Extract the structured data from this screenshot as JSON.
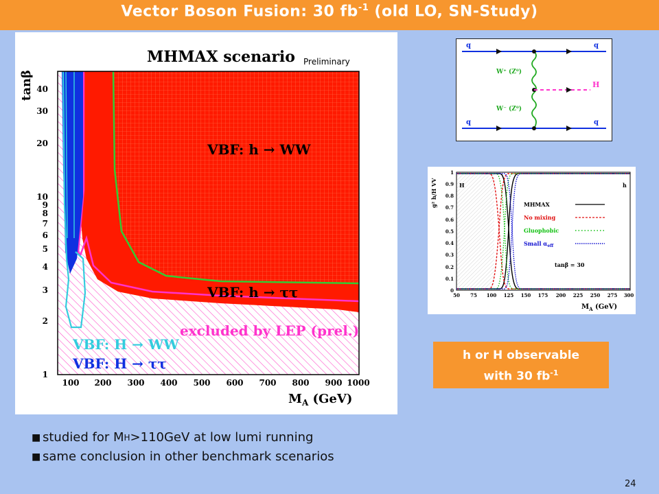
{
  "title": {
    "main": "Vector Boson Fusion: 30 fb",
    "sup": "-1",
    "rest": " (old LO, SN-Study)"
  },
  "main_plot": {
    "title": "MHMAX scenario",
    "preliminary": "Preliminary",
    "ylabel": "tanβ",
    "xlabel": "M",
    "xlabel_sub": "A",
    "xlabel_unit": " (GeV)",
    "yticks": [
      "40",
      "30",
      "20",
      "10",
      "9",
      "8",
      "7",
      "6",
      "5",
      "4",
      "3",
      "2",
      "1"
    ],
    "xticks": [
      "100",
      "200",
      "300",
      "400",
      "500",
      "600",
      "700",
      "800",
      "900",
      "1000"
    ],
    "label_hww": "VBF: h → WW",
    "label_htt": "VBF: h → ττ",
    "label_lep": "excluded by LEP (prel.)",
    "label_Hww": "VBF: H → WW",
    "label_Htt": "VBF: H → ττ"
  },
  "feynman": {
    "q1": "q",
    "q2": "q",
    "q3": "q",
    "q4": "q",
    "w_top": "W⁺ (Z⁰)",
    "w_bot": "W⁻ (Z⁰)",
    "higgs": "H"
  },
  "coupling_plot": {
    "ylabel": "g² h/H VV",
    "yticks": [
      "1",
      "0.9",
      "0.8",
      "0.7",
      "0.6",
      "0.5",
      "0.4",
      "0.3",
      "0.2",
      "0.1",
      "0"
    ],
    "xticks": [
      "50",
      "75",
      "100",
      "125",
      "150",
      "175",
      "200",
      "225",
      "250",
      "275",
      "300"
    ],
    "xlabel": "M",
    "xlabel_sub": "A",
    "xlabel_unit": " (GeV)",
    "label_H": "H",
    "label_h": "h",
    "legend": [
      {
        "name": "MHMAX",
        "color": "#000000",
        "style": "solid"
      },
      {
        "name": "No mixing",
        "color": "#e01010",
        "style": "dashed"
      },
      {
        "name": "Gluophobic",
        "color": "#10c010",
        "style": "dotted"
      },
      {
        "name": "Small α",
        "sub": "eff",
        "color": "#1010d0",
        "style": "dotted"
      }
    ],
    "tanb": "tanβ = 30"
  },
  "observable": {
    "line1": "h or H observable",
    "line2": "with 30 fb",
    "line2_sup": "-1"
  },
  "bullets": [
    {
      "pre": "studied for M",
      "sub": "H",
      "post": ">110GeV  at low lumi running"
    },
    {
      "pre": "same conclusion in other benchmark scenarios",
      "sub": "",
      "post": ""
    }
  ],
  "page_number": "24",
  "colors": {
    "header": "#f7962e",
    "background": "#a9c3f0",
    "red": "#ff1a00",
    "blue": "#1030e0",
    "magenta": "#ff33cc",
    "cyan": "#33ccdd",
    "green": "#33cc33"
  }
}
